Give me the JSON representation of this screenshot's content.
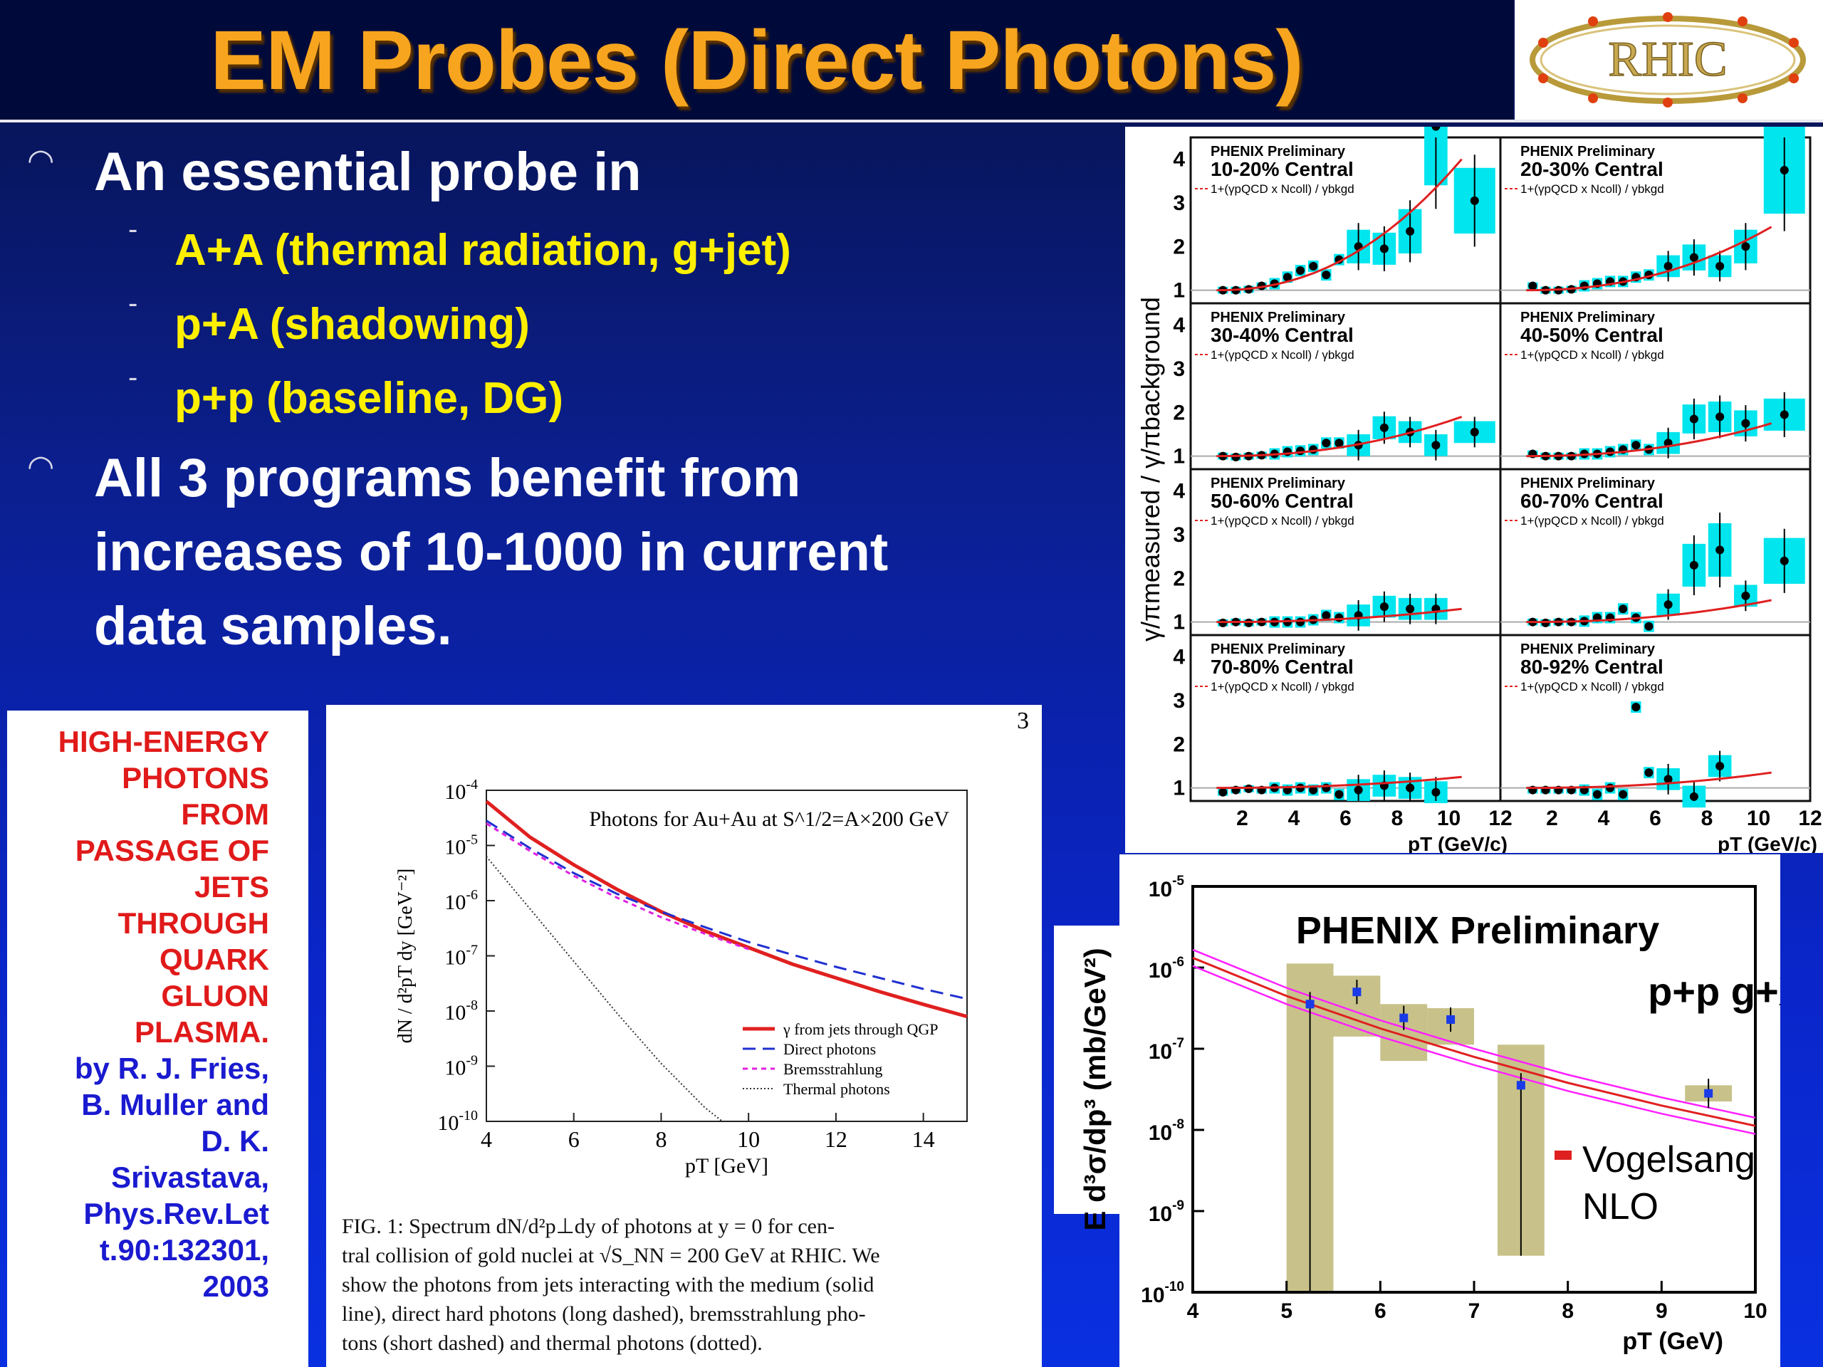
{
  "title": "EM Probes (Direct Photons)",
  "logo_text": "RHIC",
  "bullets": [
    {
      "text": "An essential probe in",
      "subs": [
        "A+A (thermal radiation, g+jet)",
        "p+A (shadowing)",
        "p+p (baseline, DG)"
      ]
    },
    {
      "text_lines": [
        "All 3 programs benefit from",
        "increases of 10-1000 in current",
        "data samples."
      ]
    }
  ],
  "reference": {
    "title_lines": [
      "HIGH-ENERGY",
      "PHOTONS",
      "FROM",
      "PASSAGE OF",
      "JETS",
      "THROUGH",
      "QUARK",
      "GLUON",
      "PLASMA."
    ],
    "author_lines": [
      "by R. J. Fries,",
      "B. Muller and",
      "D. K.",
      "Srivastava,",
      "Phys.Rev.Let",
      "t.90:132301,",
      "2003"
    ]
  },
  "paper": {
    "page_number": "3",
    "caption_lines": [
      "FIG. 1:  Spectrum dN/d²p⊥dy of photons at y = 0 for cen-",
      "tral collision of gold nuclei at √S_NN = 200 GeV at RHIC. We",
      "show the photons from jets interacting with the medium (solid",
      "line), direct hard photons (long dashed), bremsstrahlung pho-",
      "tons (short dashed) and thermal photons (dotted)."
    ]
  },
  "colors": {
    "title": "#f7a51e",
    "bullet_yellow": "#fff000",
    "cyan_box": "#00e5ee",
    "red_curve": "#e02020",
    "olive_box": "#c8c28a",
    "magenta": "#ff20ff"
  },
  "chart_data": [
    {
      "type": "line",
      "title": "Photons for Au+Au at S^1/2=A×200 GeV",
      "xlabel": "pT [GeV]",
      "ylabel": "dN / d²pT dy [GeV⁻²]",
      "xlim": [
        4,
        15
      ],
      "ylim_log10": [
        -10,
        -4
      ],
      "x_ticks": [
        "4",
        "6",
        "8",
        "10",
        "12",
        "14"
      ],
      "y_ticks": [
        "10-4",
        "10-5",
        "10-6",
        "10-7",
        "10-8",
        "10-9",
        "10-10"
      ],
      "series": [
        {
          "name": "γ from jets through QGP",
          "style": "solid-red",
          "x": [
            4,
            5,
            6,
            7,
            8,
            9,
            10,
            11,
            12,
            13,
            14,
            15
          ],
          "log10y": [
            -4.2,
            -4.85,
            -5.35,
            -5.8,
            -6.2,
            -6.55,
            -6.85,
            -7.15,
            -7.4,
            -7.65,
            -7.88,
            -8.1
          ]
        },
        {
          "name": "Direct photons",
          "style": "dashed-blue",
          "x": [
            4,
            5,
            6,
            7,
            8,
            9,
            10,
            11,
            12,
            13,
            14,
            15
          ],
          "log10y": [
            -4.55,
            -5.05,
            -5.5,
            -5.88,
            -6.2,
            -6.48,
            -6.75,
            -6.98,
            -7.2,
            -7.4,
            -7.6,
            -7.78
          ]
        },
        {
          "name": "Bremsstrahlung",
          "style": "shortdash-magenta",
          "x": [
            4,
            5,
            6,
            7,
            8,
            9,
            10
          ],
          "log10y": [
            -4.6,
            -5.1,
            -5.55,
            -5.95,
            -6.3,
            -6.6,
            -6.88
          ]
        },
        {
          "name": "Thermal photons",
          "style": "dotted-black",
          "x": [
            4,
            5,
            6,
            7,
            8,
            9,
            9.4
          ],
          "log10y": [
            -5.2,
            -6.15,
            -7.1,
            -8.05,
            -8.95,
            -9.75,
            -10.0
          ]
        }
      ]
    },
    {
      "type": "scatter",
      "panel_label": "PHENIX Preliminary",
      "legend_text": "1+(γpQCD x Ncoll) / γbkgd",
      "ylabel": "γ/πmeasured / γ/πbackground",
      "xlabel": "pT (GeV/c)",
      "xlim": [
        0,
        12
      ],
      "ylim": [
        0.7,
        4.5
      ],
      "x_ticks": [
        "2",
        "4",
        "6",
        "8",
        "10",
        "12"
      ],
      "y_ticks": [
        "1",
        "2",
        "3",
        "4"
      ],
      "panels": [
        {
          "centrality": "10-20% Central",
          "x": [
            1.25,
            1.75,
            2.25,
            2.75,
            3.25,
            3.75,
            4.25,
            4.75,
            5.25,
            5.75,
            6.5,
            7.5,
            8.5,
            9.5,
            11
          ],
          "y": [
            1.0,
            1.0,
            1.02,
            1.1,
            1.15,
            1.3,
            1.45,
            1.55,
            1.35,
            1.7,
            2.0,
            1.95,
            2.35,
            4.75,
            3.05
          ],
          "curve_end": 4.0
        },
        {
          "centrality": "20-30% Central",
          "x": [
            1.25,
            1.75,
            2.25,
            2.75,
            3.25,
            3.75,
            4.25,
            4.75,
            5.25,
            5.75,
            6.5,
            7.5,
            8.5,
            9.5,
            11
          ],
          "y": [
            1.1,
            1.0,
            1.0,
            1.02,
            1.1,
            1.15,
            1.2,
            1.2,
            1.3,
            1.35,
            1.55,
            1.75,
            1.55,
            2.0,
            3.75
          ],
          "curve_end": 2.45
        },
        {
          "centrality": "30-40% Central",
          "x": [
            1.25,
            1.75,
            2.25,
            2.75,
            3.25,
            3.75,
            4.25,
            4.75,
            5.25,
            5.75,
            6.5,
            7.5,
            8.5,
            9.5,
            11
          ],
          "y": [
            1.0,
            0.98,
            1.0,
            1.02,
            1.05,
            1.1,
            1.12,
            1.15,
            1.3,
            1.3,
            1.25,
            1.65,
            1.55,
            1.25,
            1.55
          ],
          "curve_end": 1.9
        },
        {
          "centrality": "40-50% Central",
          "x": [
            1.25,
            1.75,
            2.25,
            2.75,
            3.25,
            3.75,
            4.25,
            4.75,
            5.25,
            5.75,
            6.5,
            7.5,
            8.5,
            9.5,
            11
          ],
          "y": [
            1.05,
            1.0,
            1.0,
            1.0,
            1.05,
            1.05,
            1.1,
            1.15,
            1.25,
            1.15,
            1.3,
            1.85,
            1.9,
            1.75,
            1.95
          ],
          "curve_end": 1.75
        },
        {
          "centrality": "50-60% Central",
          "x": [
            1.25,
            1.75,
            2.25,
            2.75,
            3.25,
            3.75,
            4.25,
            4.75,
            5.25,
            5.75,
            6.5,
            7.5,
            8.5,
            9.5
          ],
          "y": [
            0.98,
            1.0,
            0.98,
            1.0,
            1.0,
            1.0,
            1.0,
            1.05,
            1.15,
            1.1,
            1.15,
            1.35,
            1.3,
            1.3
          ],
          "curve_end": 1.3
        },
        {
          "centrality": "60-70% Central",
          "x": [
            1.25,
            1.75,
            2.25,
            2.75,
            3.25,
            3.75,
            4.25,
            4.75,
            5.25,
            5.75,
            6.5,
            7.5,
            8.5,
            9.5,
            11
          ],
          "y": [
            1.0,
            0.98,
            1.0,
            1.0,
            1.02,
            1.1,
            1.1,
            1.3,
            1.1,
            0.9,
            1.4,
            2.3,
            2.65,
            1.6,
            2.4
          ],
          "curve_end": 1.5
        },
        {
          "centrality": "70-80% Central",
          "x": [
            1.25,
            1.75,
            2.25,
            2.75,
            3.25,
            3.75,
            4.25,
            4.75,
            5.25,
            5.75,
            6.5,
            7.5,
            8.5,
            9.5
          ],
          "y": [
            0.9,
            0.95,
            0.98,
            0.95,
            1.0,
            0.95,
            1.0,
            0.95,
            1.0,
            0.85,
            0.95,
            1.05,
            1.0,
            0.9
          ],
          "curve_end": 1.25
        },
        {
          "centrality": "80-92% Central",
          "x": [
            1.25,
            1.75,
            2.25,
            2.75,
            3.25,
            3.75,
            4.25,
            4.75,
            5.25,
            5.75,
            6.5,
            7.5,
            8.5
          ],
          "y": [
            0.95,
            0.95,
            0.95,
            0.95,
            0.95,
            0.85,
            1.0,
            0.85,
            2.85,
            1.35,
            1.2,
            0.8,
            1.5
          ],
          "curve_end": 1.35
        }
      ]
    },
    {
      "type": "scatter",
      "title": "PHENIX Preliminary",
      "subtitle": "p+p g+X",
      "legend": "Vogelsang NLO",
      "xlabel": "pT (GeV)",
      "ylabel": "E d³σ/dp³ (mb/GeV²)",
      "xlim": [
        4,
        10
      ],
      "ylim_log10": [
        -10,
        -5
      ],
      "x_ticks": [
        "4",
        "5",
        "6",
        "7",
        "8",
        "9",
        "10"
      ],
      "y_ticks": [
        "10-5",
        "10-6",
        "10-7",
        "10-8",
        "10-9",
        "10-10"
      ],
      "points": [
        {
          "x": 5.25,
          "log10y": -6.45,
          "sys_lo": -10.0,
          "sys_hi": -5.95
        },
        {
          "x": 5.75,
          "log10y": -6.3,
          "sys_lo": -6.85,
          "sys_hi": -6.1
        },
        {
          "x": 6.25,
          "log10y": -6.62,
          "sys_lo": -7.15,
          "sys_hi": -6.45
        },
        {
          "x": 6.75,
          "log10y": -6.64,
          "sys_lo": -6.95,
          "sys_hi": -6.5
        },
        {
          "x": 7.5,
          "log10y": -7.45,
          "sys_lo": -9.55,
          "sys_hi": -6.95
        },
        {
          "x": 9.5,
          "log10y": -7.55,
          "sys_lo": -7.65,
          "sys_hi": -7.45
        }
      ],
      "nlo_x": [
        4,
        5,
        6,
        7,
        8,
        9,
        10
      ],
      "nlo_log10y": [
        -5.88,
        -6.35,
        -6.75,
        -7.1,
        -7.42,
        -7.7,
        -7.95
      ]
    }
  ]
}
